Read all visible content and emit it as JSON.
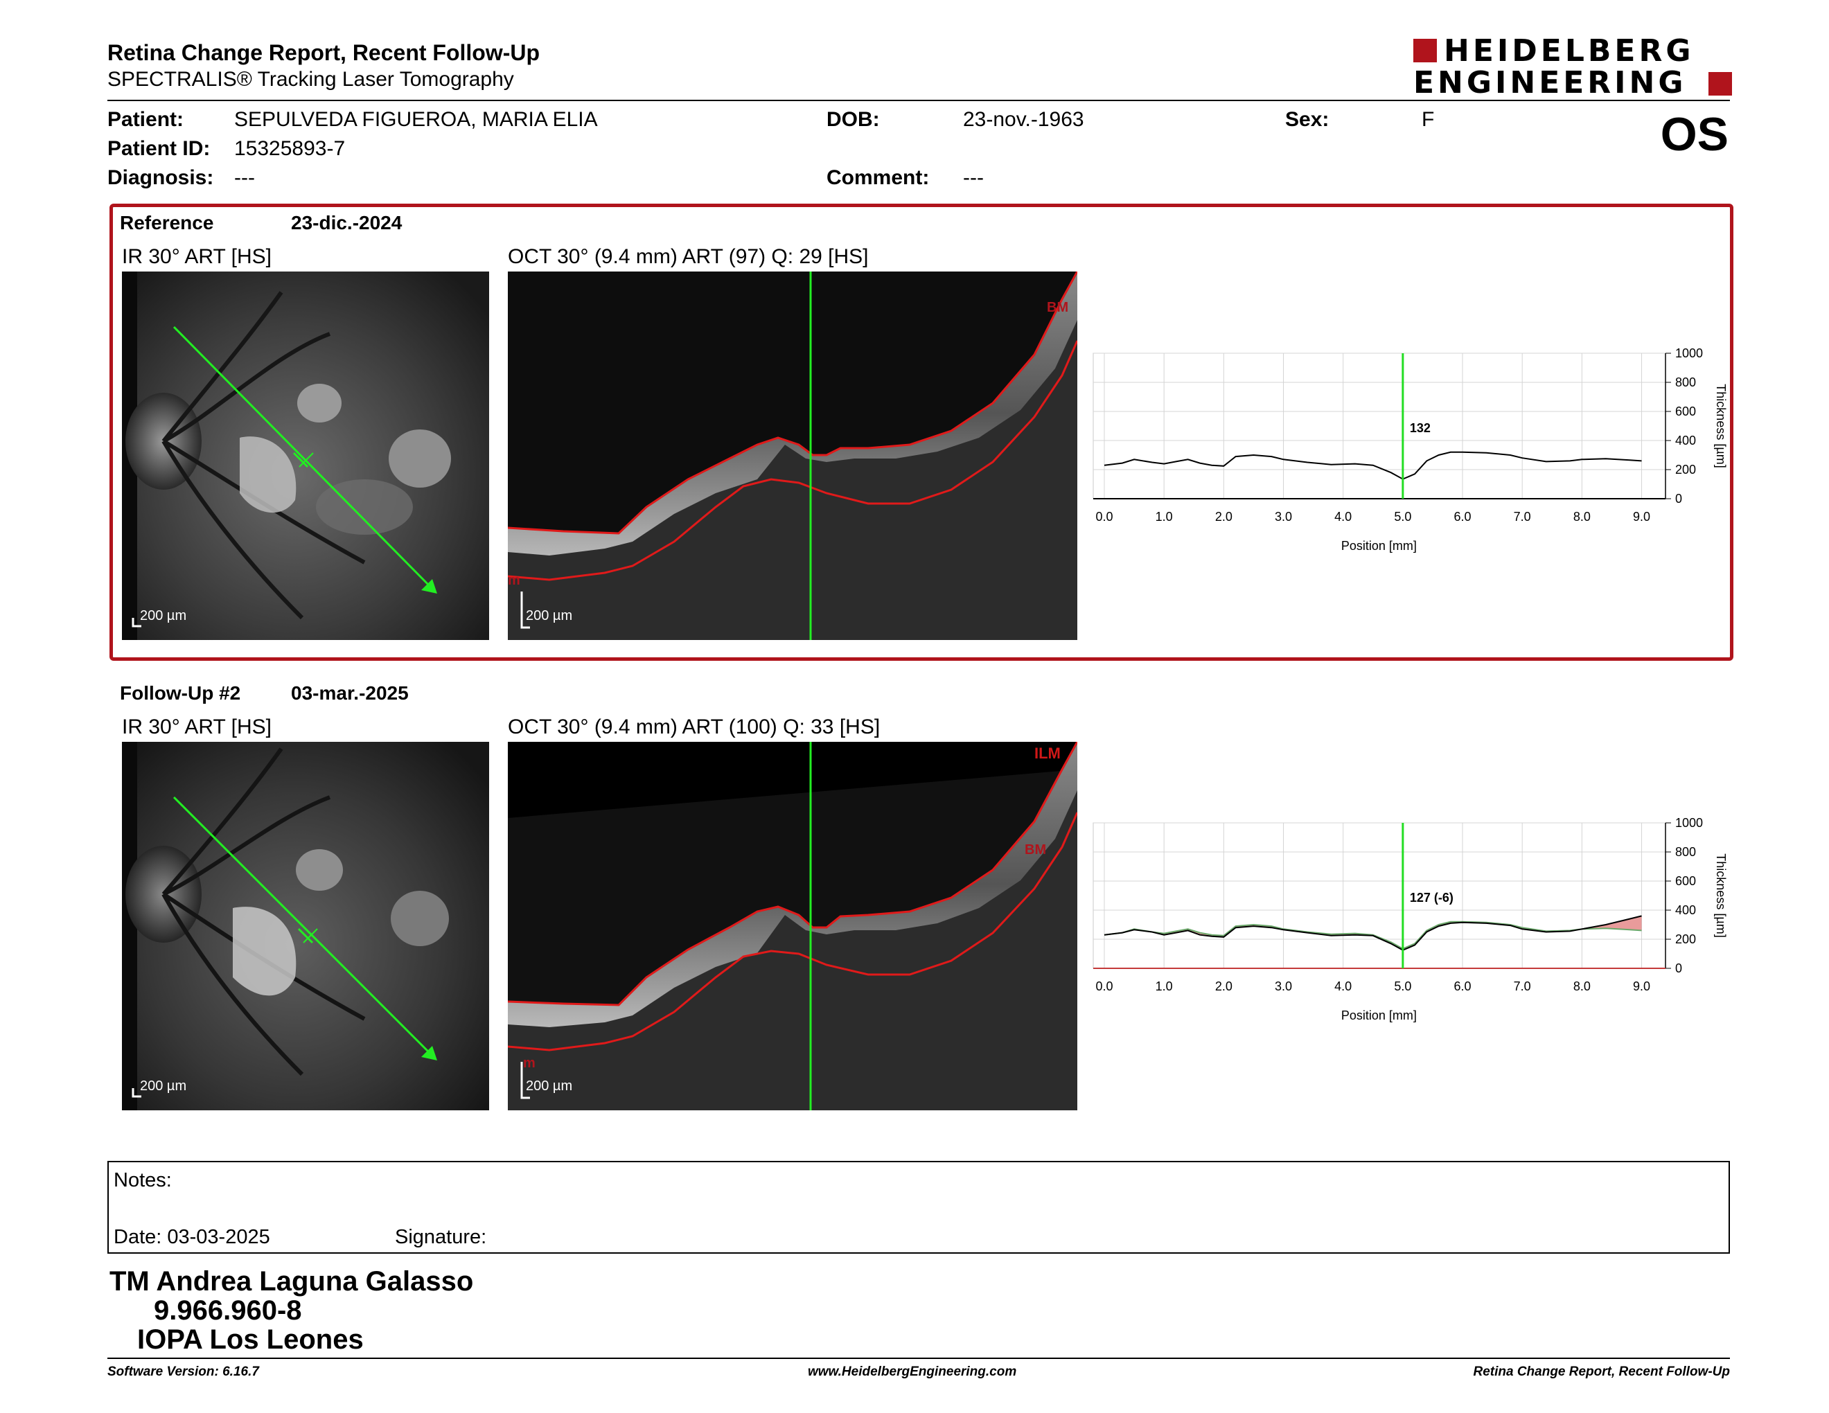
{
  "header": {
    "title": "Retina Change Report, Recent Follow-Up",
    "subtitle": "SPECTRALIS® Tracking Laser Tomography",
    "logo_line1": "HEIDELBERG",
    "logo_line2": "ENGINEERING",
    "eye": "OS"
  },
  "patient": {
    "patient_label": "Patient:",
    "patient_value": "SEPULVEDA FIGUEROA, MARIA ELIA",
    "dob_label": "DOB:",
    "dob_value": "23-nov.-1963",
    "sex_label": "Sex:",
    "sex_value": "F",
    "id_label": "Patient ID:",
    "id_value": "15325893-7",
    "diagnosis_label": "Diagnosis:",
    "diagnosis_value": "---",
    "comment_label": "Comment:",
    "comment_value": "---"
  },
  "reference": {
    "label": "Reference",
    "date": "23-dic.-2024",
    "ir_caption": "IR 30° ART [HS]",
    "oct_caption": "OCT 30° (9.4 mm) ART (97) Q: 29 [HS]",
    "ir_scale": "200 µm",
    "oct_scale": "200 µm",
    "oct_tags": [
      "BM",
      "m"
    ],
    "marker_value": "132"
  },
  "followup": {
    "label": "Follow-Up #2",
    "date": "03-mar.-2025",
    "ir_caption": "IR 30° ART [HS]",
    "oct_caption": "OCT 30° (9.4 mm) ART (100) Q: 33 [HS]",
    "ir_scale": "200 µm",
    "oct_scale": "200 µm",
    "oct_tags": [
      "ILM",
      "BM",
      "m"
    ],
    "marker_value": "127 (-6)"
  },
  "chart_data": [
    {
      "type": "line",
      "xlabel": "Position [mm]",
      "ylabel": "Thickness [µm]",
      "xlim": [
        0,
        9
      ],
      "ylim": [
        0,
        1000
      ],
      "x_ticks": [
        "0.0",
        "1.0",
        "2.0",
        "3.0",
        "4.0",
        "5.0",
        "6.0",
        "7.0",
        "8.0",
        "9.0"
      ],
      "y_ticks": [
        "0",
        "200",
        "400",
        "600",
        "800",
        "1000"
      ],
      "marker_x": 5.0,
      "marker_label": "132",
      "series": [
        {
          "color": "#000000",
          "x": [
            0,
            0.3,
            0.5,
            0.8,
            1.0,
            1.2,
            1.4,
            1.6,
            1.8,
            2.0,
            2.2,
            2.5,
            2.8,
            3.0,
            3.4,
            3.8,
            4.2,
            4.5,
            4.8,
            5.0,
            5.2,
            5.4,
            5.6,
            5.8,
            6.0,
            6.4,
            6.8,
            7.0,
            7.4,
            7.8,
            8.0,
            8.4,
            8.8,
            9.0
          ],
          "y": [
            230,
            245,
            270,
            250,
            240,
            255,
            270,
            245,
            230,
            225,
            290,
            300,
            290,
            270,
            250,
            235,
            240,
            230,
            180,
            135,
            170,
            260,
            300,
            320,
            320,
            315,
            300,
            280,
            255,
            260,
            270,
            275,
            265,
            260
          ]
        }
      ]
    },
    {
      "type": "line",
      "xlabel": "Position [mm]",
      "ylabel": "Thickness [µm]",
      "xlim": [
        0,
        9
      ],
      "ylim": [
        0,
        1000
      ],
      "x_ticks": [
        "0.0",
        "1.0",
        "2.0",
        "3.0",
        "4.0",
        "5.0",
        "6.0",
        "7.0",
        "8.0",
        "9.0"
      ],
      "y_ticks": [
        "0",
        "200",
        "400",
        "600",
        "800",
        "1000"
      ],
      "marker_x": 5.0,
      "marker_label": "127 (-6)",
      "series": [
        {
          "color": "#000000",
          "x": [
            0,
            0.3,
            0.5,
            0.8,
            1.0,
            1.2,
            1.4,
            1.6,
            1.8,
            2.0,
            2.2,
            2.5,
            2.8,
            3.0,
            3.4,
            3.8,
            4.2,
            4.5,
            4.8,
            5.0,
            5.2,
            5.4,
            5.6,
            5.8,
            6.0,
            6.4,
            6.8,
            7.0,
            7.4,
            7.8,
            8.0,
            8.4,
            8.8,
            9.0
          ],
          "y": [
            230,
            245,
            265,
            250,
            230,
            245,
            260,
            230,
            220,
            215,
            280,
            290,
            280,
            265,
            245,
            225,
            230,
            225,
            170,
            125,
            160,
            250,
            290,
            310,
            315,
            310,
            295,
            270,
            250,
            255,
            270,
            300,
            340,
            360
          ]
        },
        {
          "color": "#6aa86a",
          "x": [
            0,
            0.3,
            0.5,
            0.8,
            1.0,
            1.2,
            1.4,
            1.6,
            1.8,
            2.0,
            2.2,
            2.5,
            2.8,
            3.0,
            3.4,
            3.8,
            4.2,
            4.5,
            4.8,
            5.0,
            5.2,
            5.4,
            5.6,
            5.8,
            6.0,
            6.4,
            6.8,
            7.0,
            7.4,
            7.8,
            8.0,
            8.4,
            8.8,
            9.0
          ],
          "y": [
            230,
            245,
            270,
            250,
            240,
            255,
            270,
            245,
            230,
            225,
            290,
            300,
            290,
            270,
            250,
            235,
            240,
            230,
            180,
            135,
            170,
            260,
            300,
            320,
            320,
            315,
            300,
            280,
            255,
            260,
            270,
            275,
            265,
            260
          ]
        }
      ]
    }
  ],
  "notes": {
    "label": "Notes:",
    "date_label": "Date: 03-03-2025",
    "signature_label": "Signature:"
  },
  "signer": {
    "name": "TM Andrea Laguna Galasso",
    "rut": "9.966.960-8",
    "institution": "IOPA Los Leones"
  },
  "footer": {
    "software": "Software Version: 6.16.7",
    "website": "www.HeidelbergEngineering.com",
    "report_name": "Retina Change Report, Recent Follow-Up"
  }
}
